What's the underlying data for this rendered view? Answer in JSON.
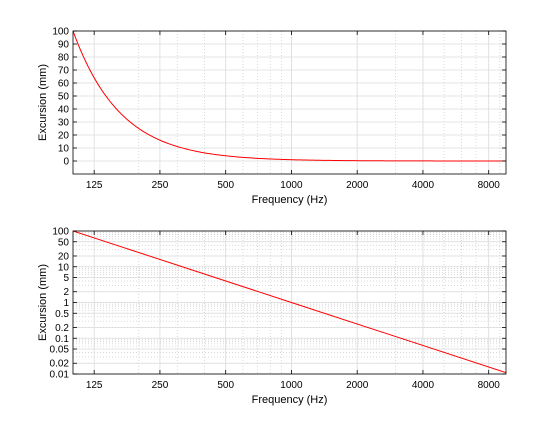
{
  "chart_data": [
    {
      "type": "line",
      "xlabel": "Frequency (Hz)",
      "ylabel": "Excursion (mm)",
      "xscale": "log",
      "yscale": "linear",
      "xlim": [
        100,
        9600
      ],
      "ylim": [
        -10,
        100
      ],
      "xticks": [
        125,
        250,
        500,
        1000,
        2000,
        4000,
        8000
      ],
      "xtick_labels": [
        "125",
        "250",
        "500",
        "1000",
        "2000",
        "4000",
        "8000"
      ],
      "yticks": [
        0,
        10,
        20,
        30,
        40,
        50,
        60,
        70,
        80,
        90,
        100
      ],
      "ytick_labels": [
        "0",
        "10",
        "20",
        "30",
        "40",
        "50",
        "60",
        "70",
        "80",
        "90",
        "100"
      ],
      "grid": true,
      "series": [
        {
          "color": "#ff0000",
          "x": [
            100,
            125,
            160,
            200,
            250,
            315,
            400,
            500,
            630,
            800,
            1000,
            2000,
            4000,
            8000,
            9600
          ],
          "y": [
            100,
            64,
            39.1,
            25,
            16,
            10.1,
            6.25,
            4,
            2.52,
            1.56,
            1,
            0.25,
            0.0625,
            0.0156,
            0.0109
          ]
        }
      ]
    },
    {
      "type": "line",
      "xlabel": "Frequency (Hz)",
      "ylabel": "Excursion (mm)",
      "xscale": "log",
      "yscale": "log",
      "xlim": [
        100,
        9600
      ],
      "ylim": [
        0.01,
        100
      ],
      "xticks": [
        125,
        250,
        500,
        1000,
        2000,
        4000,
        8000
      ],
      "xtick_labels": [
        "125",
        "250",
        "500",
        "1000",
        "2000",
        "4000",
        "8000"
      ],
      "yticks": [
        0.01,
        0.02,
        0.05,
        0.1,
        0.2,
        0.5,
        1,
        2,
        5,
        10,
        20,
        50,
        100
      ],
      "ytick_labels": [
        "0.01",
        "0.02",
        "0.05",
        "0.1",
        "0.2",
        "0.5",
        "1",
        "2",
        "5",
        "10",
        "20",
        "50",
        "100"
      ],
      "grid": true,
      "series": [
        {
          "color": "#ff0000",
          "x": [
            100,
            1000,
            9600
          ],
          "y": [
            100,
            1,
            0.0109
          ]
        }
      ]
    }
  ]
}
